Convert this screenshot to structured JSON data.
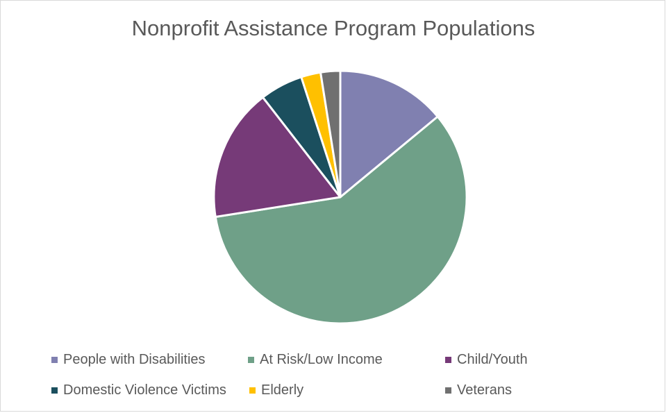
{
  "chart_data": {
    "type": "pie",
    "title": "Nonprofit Assistance Program Populations",
    "legend_position": "bottom",
    "slices": [
      {
        "label": "People with Disabilities",
        "value": 14.0,
        "color": "#8080b0"
      },
      {
        "label": "At Risk/Low Income",
        "value": 58.5,
        "color": "#6fa088"
      },
      {
        "label": "Child/Youth",
        "value": 17.0,
        "color": "#763a78"
      },
      {
        "label": "Domestic Violence Victims",
        "value": 5.5,
        "color": "#1b4f5e"
      },
      {
        "label": "Elderly",
        "value": 2.5,
        "color": "#ffc000"
      },
      {
        "label": "Veterans",
        "value": 2.5,
        "color": "#707070"
      }
    ]
  }
}
